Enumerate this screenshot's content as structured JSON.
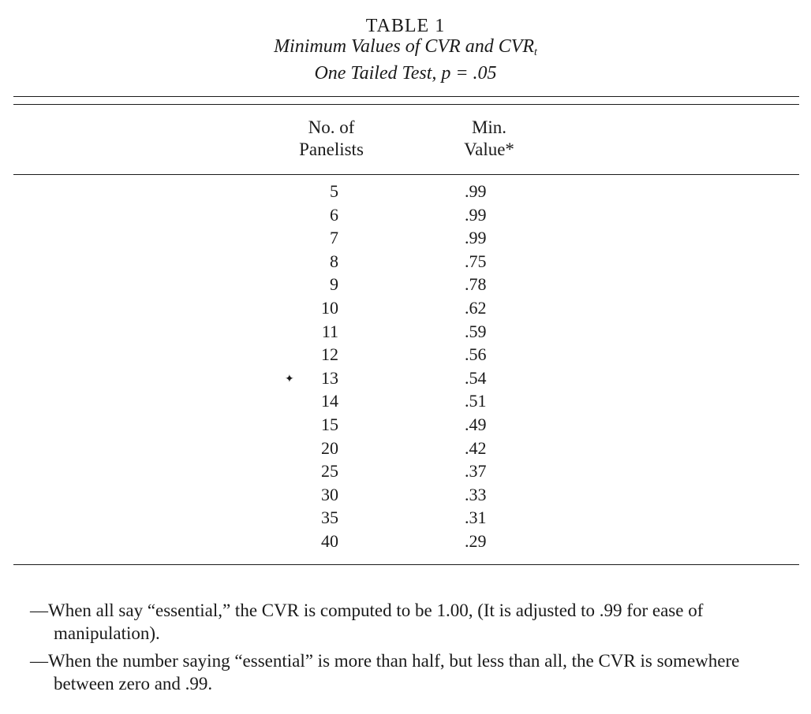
{
  "table": {
    "label": "TABLE 1",
    "title_main": "Minimum Values of CVR and CVR",
    "title_sub": "t",
    "subtitle": "One Tailed Test, p = .05",
    "headers": {
      "col1_line1": "No. of",
      "col1_line2": "Panelists",
      "col2_line1": "Min.",
      "col2_line2": "Value*"
    },
    "rows": [
      {
        "n": "5",
        "v": ".99"
      },
      {
        "n": "6",
        "v": ".99"
      },
      {
        "n": "7",
        "v": ".99"
      },
      {
        "n": "8",
        "v": ".75"
      },
      {
        "n": "9",
        "v": ".78"
      },
      {
        "n": "10",
        "v": ".62"
      },
      {
        "n": "11",
        "v": ".59"
      },
      {
        "n": "12",
        "v": ".56"
      },
      {
        "n": "13",
        "v": ".54"
      },
      {
        "n": "14",
        "v": ".51"
      },
      {
        "n": "15",
        "v": ".49"
      },
      {
        "n": "20",
        "v": ".42"
      },
      {
        "n": "25",
        "v": ".37"
      },
      {
        "n": "30",
        "v": ".33"
      },
      {
        "n": "35",
        "v": ".31"
      },
      {
        "n": "40",
        "v": ".29"
      }
    ]
  },
  "notes": [
    "—When all say “essential,” the CVR is computed to be 1.00, (It is adjusted to .99 for ease of manipulation).",
    "—When the number saying “essential” is more than half, but less than all, the CVR is somewhere between zero and .99."
  ]
}
